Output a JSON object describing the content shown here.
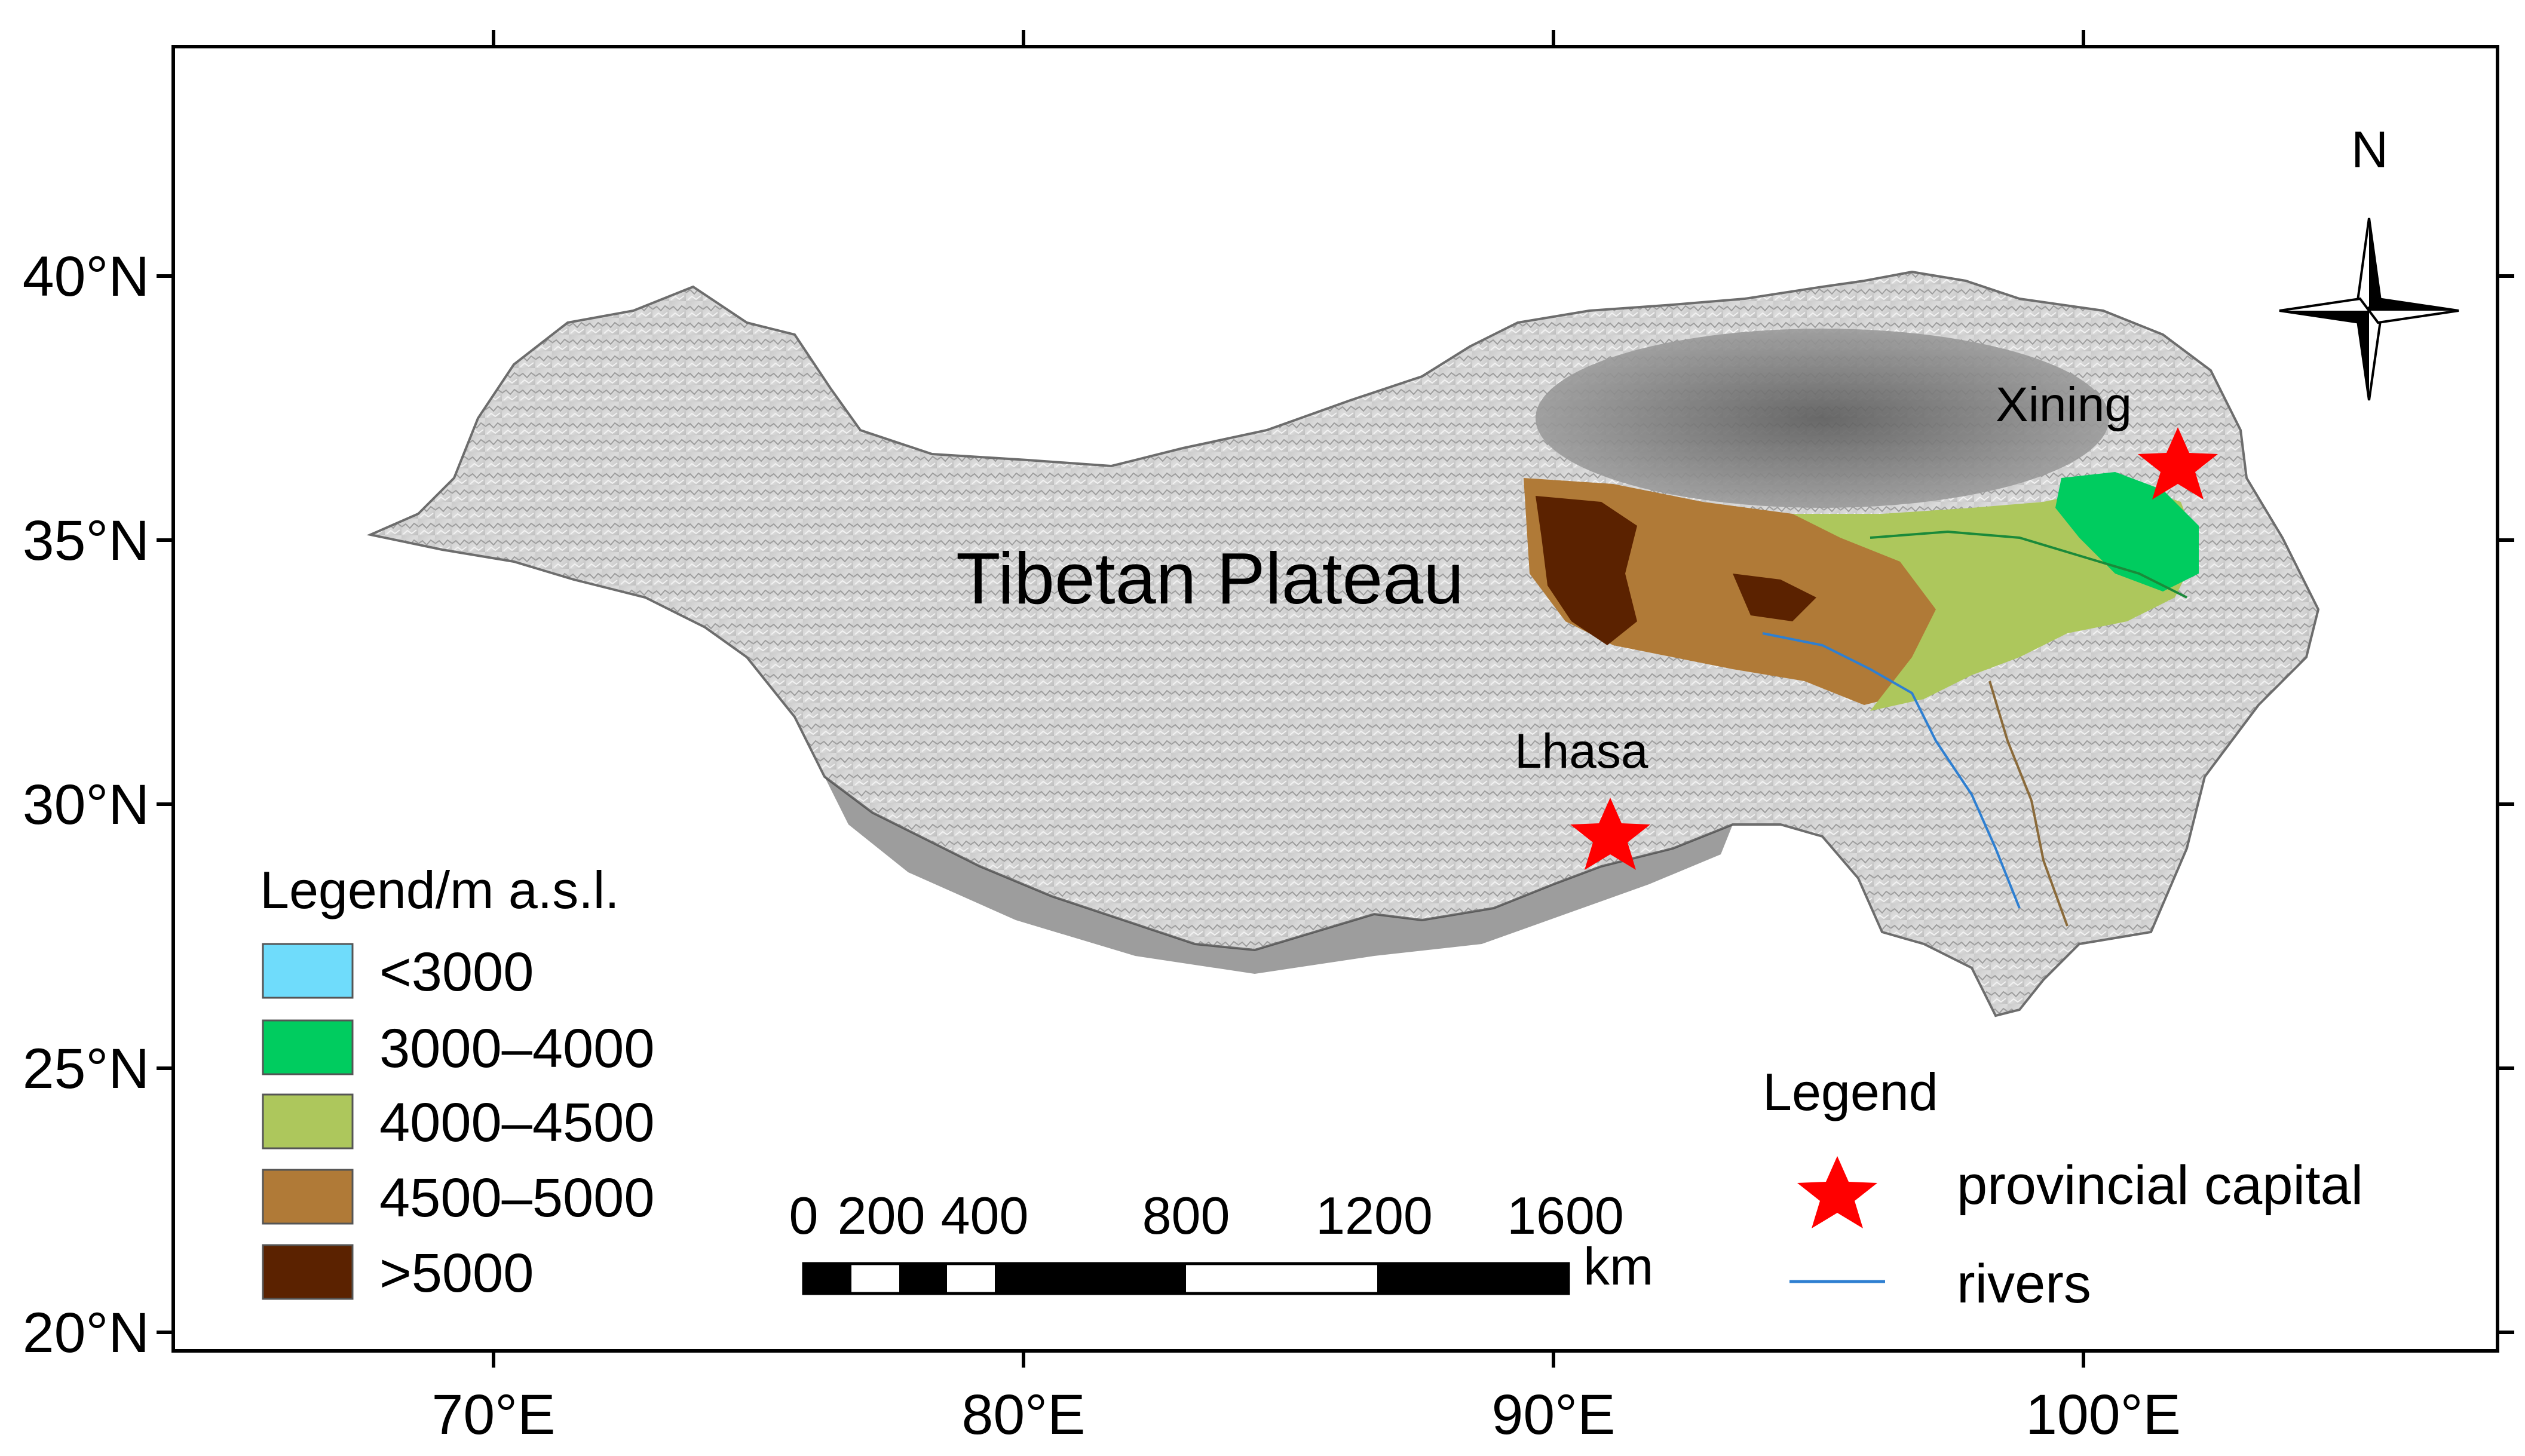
{
  "map": {
    "lat_ticks": [
      "40°N",
      "35°N",
      "30°N",
      "25°N",
      "20°N"
    ],
    "lon_ticks": [
      "70°E",
      "80°E",
      "90°E",
      "100°E"
    ],
    "plateau_label": "Tibetan Plateau",
    "places": [
      {
        "name": "Xining"
      },
      {
        "name": "Lhasa"
      }
    ],
    "north_label": "N"
  },
  "elevation_legend": {
    "title": "Legend/m a.s.l.",
    "items": [
      {
        "label": "<3000",
        "color": "#6fdcfb"
      },
      {
        "label": "3000–4000",
        "color": "#00cc5f"
      },
      {
        "label": "4000–4500",
        "color": "#adc75c"
      },
      {
        "label": "4500–5000",
        "color": "#b07a37"
      },
      {
        "label": ">5000",
        "color": "#5b2200"
      }
    ]
  },
  "symbol_legend": {
    "title": "Legend",
    "items": [
      {
        "label": "provincial capital",
        "symbol": "red-star",
        "color": "#ff0000"
      },
      {
        "label": "rivers",
        "symbol": "blue-line",
        "color": "#2e7fd1"
      }
    ]
  },
  "scale_bar": {
    "labels": [
      "0",
      "200",
      "400",
      "800",
      "1200",
      "1600"
    ],
    "unit": "km"
  }
}
